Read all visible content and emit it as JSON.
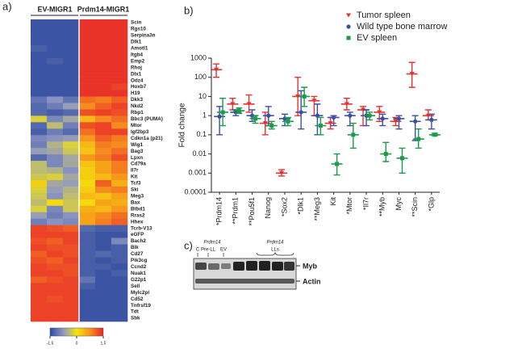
{
  "chart_data": [
    {
      "type": "heatmap",
      "panel": "a)",
      "groups": [
        "EV-MIGR1",
        "Prdm14-MIGR1"
      ],
      "rows": [
        "Scin",
        "Rgs10",
        "Serpina3n",
        "Dlk1",
        "Amotl1",
        "Itgb4",
        "Emp2",
        "Rhoj",
        "Dlx1",
        "Odz4",
        "Hoxb7",
        "H19",
        "Dkk3",
        "Nkd2",
        "Rbp1",
        "Bbc3 (PUMA)",
        "Mtor",
        "Igf2bp3",
        "Cdkn1a (p21)",
        "Wig1",
        "Bag3",
        "Lpxn",
        "Cd79a",
        "Il7r",
        "Kit",
        "Tcf3",
        "Ski",
        "Meg3",
        "Bax",
        "Btbd1",
        "Rras2",
        "Hhex",
        "Tcrb-V13",
        "eGFP",
        "Bach2",
        "Blk",
        "Cd27",
        "Pik3cg",
        "Ccnd2",
        "Nuak1",
        "G22p1",
        "Sell",
        "Mylc2pl",
        "Cd52",
        "Tnfrsf19",
        "Tdt",
        "Sbk"
      ],
      "values": [
        [
          -1.4,
          -1.4,
          -1.4,
          1.4,
          1.4,
          1.4
        ],
        [
          -1.4,
          -1.4,
          -1.4,
          1.4,
          1.4,
          1.4
        ],
        [
          -1.4,
          -1.4,
          -1.4,
          1.4,
          1.4,
          1.4
        ],
        [
          -1.4,
          -1.4,
          -1.4,
          1.4,
          1.4,
          1.4
        ],
        [
          -1.3,
          -1.4,
          -1.4,
          1.4,
          1.4,
          1.4
        ],
        [
          -1.4,
          -1.4,
          -1.4,
          1.4,
          1.4,
          1.4
        ],
        [
          -1.4,
          -1.3,
          -1.4,
          1.4,
          1.4,
          1.4
        ],
        [
          -1.4,
          -1.4,
          -1.4,
          1.4,
          1.4,
          1.4
        ],
        [
          -1.4,
          -1.4,
          -1.4,
          1.4,
          1.4,
          1.4
        ],
        [
          -1.4,
          -1.4,
          -1.4,
          1.4,
          1.4,
          1.4
        ],
        [
          -1.4,
          -1.4,
          -1.4,
          1.4,
          1.4,
          1.3
        ],
        [
          -1.4,
          -1.4,
          -1.4,
          1.4,
          1.4,
          1.4
        ],
        [
          -1.1,
          -0.8,
          -1.1,
          1.0,
          0.9,
          1.1
        ],
        [
          -1.2,
          -1.0,
          -0.7,
          0.8,
          1.1,
          1.3
        ],
        [
          -1.2,
          -1.3,
          -1.2,
          1.2,
          1.3,
          1.2
        ],
        [
          -0.2,
          -0.9,
          -0.6,
          0.4,
          0.8,
          1.0
        ],
        [
          -1.2,
          -0.4,
          -1.0,
          1.2,
          1.3,
          0.8
        ],
        [
          -1.3,
          -1.0,
          -1.2,
          1.0,
          1.3,
          1.3
        ],
        [
          -0.9,
          -0.8,
          -0.7,
          0.7,
          1.1,
          0.9
        ],
        [
          -1.0,
          -0.5,
          -0.2,
          0.4,
          0.9,
          0.8
        ],
        [
          -0.7,
          -0.6,
          -0.3,
          0.3,
          0.8,
          1.0
        ],
        [
          -1.2,
          -0.9,
          -0.6,
          0.7,
          0.9,
          1.2
        ],
        [
          -0.4,
          -0.9,
          -0.6,
          0.3,
          0.6,
          0.9
        ],
        [
          -0.4,
          -0.5,
          -0.8,
          0.2,
          0.6,
          0.9
        ],
        [
          -0.3,
          -0.2,
          -0.6,
          0.2,
          0.4,
          0.7
        ],
        [
          0.2,
          -0.6,
          -0.7,
          0.1,
          1.1,
          0.5
        ],
        [
          -0.2,
          -0.7,
          -0.5,
          0.2,
          0.8,
          0.9
        ],
        [
          -0.3,
          -0.8,
          -0.4,
          0.4,
          0.3,
          0.6
        ],
        [
          -0.4,
          0.1,
          -0.3,
          0.1,
          0.6,
          0.5
        ],
        [
          -0.2,
          -0.9,
          -0.3,
          0.5,
          0.4,
          0.7
        ],
        [
          -0.7,
          -1.0,
          -0.8,
          0.6,
          0.8,
          1.0
        ],
        [
          -1.0,
          -0.8,
          -0.9,
          0.6,
          0.9,
          1.1
        ],
        [
          1.3,
          1.2,
          1.1,
          -1.2,
          -1.3,
          -1.3
        ],
        [
          1.3,
          1.3,
          1.3,
          -1.3,
          -1.4,
          -1.4
        ],
        [
          1.2,
          1.1,
          1.3,
          -1.3,
          -1.4,
          -0.9
        ],
        [
          1.3,
          1.2,
          1.2,
          -1.3,
          -1.4,
          -1.3
        ],
        [
          1.1,
          1.3,
          1.2,
          -1.3,
          -1.2,
          -1.3
        ],
        [
          1.2,
          1.1,
          1.3,
          -1.3,
          -1.4,
          -1.3
        ],
        [
          1.3,
          1.2,
          1.2,
          -1.3,
          -1.3,
          -1.4
        ],
        [
          1.3,
          1.3,
          1.2,
          -1.3,
          -1.4,
          -1.3
        ],
        [
          1.1,
          1.2,
          1.3,
          -1.1,
          -1.4,
          -1.4
        ],
        [
          1.3,
          1.3,
          1.3,
          -1.3,
          -1.4,
          -1.4
        ],
        [
          1.3,
          1.3,
          1.3,
          -1.4,
          -1.4,
          -1.4
        ],
        [
          1.3,
          1.2,
          1.3,
          -1.4,
          -1.4,
          -1.4
        ],
        [
          1.3,
          1.3,
          1.3,
          -1.4,
          -1.4,
          -1.4
        ],
        [
          1.3,
          1.3,
          1.3,
          -1.4,
          -1.4,
          -1.4
        ],
        [
          1.3,
          1.3,
          1.3,
          -1.4,
          -1.4,
          -1.4
        ]
      ],
      "colorbar": {
        "range": [
          -1.5,
          1.5
        ],
        "ticks": [
          -1.5,
          0,
          1.5
        ]
      },
      "colors": [
        "#2e4a9e",
        "#8f98c4",
        "#f4e50a",
        "#f7931e",
        "#e8242a"
      ]
    },
    {
      "type": "dotplot",
      "panel": "b)",
      "ylabel": "Fold change",
      "log_scale": true,
      "legend": "top-right",
      "categories": [
        "*Prdm14",
        "**Prdm1",
        "**Pou5f1",
        "Nanog",
        "*Sox2",
        "*Dlk1",
        "**Meg3",
        "Kit",
        "*Mtor",
        "*Il7r",
        "**Myb",
        "Myc",
        "**Scin",
        "*Glp"
      ],
      "ylim": [
        0.0001,
        1000
      ],
      "yticks": [
        0.0001,
        0.001,
        0.01,
        0.1,
        1,
        10,
        100,
        1000
      ],
      "series": [
        {
          "name": "Tumor spleen",
          "color": "#e8312f",
          "marker": "triangle",
          "values": [
            250,
            4,
            4,
            0.4,
            0.001,
            10,
            6,
            0.4,
            4,
            2,
            1.5,
            0.5,
            150,
            1
          ],
          "lower": [
            100,
            2,
            1.5,
            0.1,
            0.0007,
            1,
            1,
            0.2,
            2,
            0.3,
            0.5,
            0.3,
            30,
            0.6
          ],
          "upper": [
            500,
            8,
            12,
            1.5,
            0.0015,
            100,
            10,
            0.8,
            8,
            3,
            3,
            0.8,
            600,
            2
          ]
        },
        {
          "name": "Wild type bone marrow",
          "color": "#3b50a3",
          "marker": "circle",
          "values": [
            0.9,
            1.5,
            1,
            1,
            0.7,
            1.5,
            1,
            0.8,
            1,
            1,
            0.7,
            0.7,
            0.5,
            0.6
          ],
          "lower": [
            0.1,
            1,
            0.5,
            0.3,
            0.3,
            0.2,
            0.1,
            0.3,
            0.3,
            0.3,
            0.3,
            0.2,
            0.05,
            0.2
          ],
          "upper": [
            3,
            2,
            2,
            3,
            1.2,
            20,
            4,
            1,
            1.5,
            2,
            1.2,
            1,
            1,
            1.2
          ]
        },
        {
          "name": "EV spleen",
          "color": "#1a9a4a",
          "marker": "square",
          "values": [
            1.5,
            1.8,
            0.7,
            0.3,
            0.5,
            10,
            0.3,
            0.003,
            0.1,
            1,
            0.01,
            0.006,
            0.06,
            0.1
          ],
          "lower": [
            0.3,
            1.3,
            0.4,
            0.2,
            0.3,
            3,
            0.1,
            0.0008,
            0.02,
            0.6,
            0.004,
            0.001,
            0.02,
            0.09
          ],
          "upper": [
            8,
            2.5,
            1,
            0.5,
            0.8,
            30,
            0.8,
            0.01,
            0.4,
            1.5,
            0.04,
            0.02,
            0.2,
            0.12
          ]
        }
      ]
    }
  ],
  "blot": {
    "panel": "c)",
    "control": "C",
    "pre_ll_group": "Prdm14",
    "pre_ll": "Pre-LL",
    "ev": "EV",
    "ll_group": "Prdm14",
    "ll": "LLs",
    "bands": [
      "Myb",
      "Actin"
    ]
  }
}
